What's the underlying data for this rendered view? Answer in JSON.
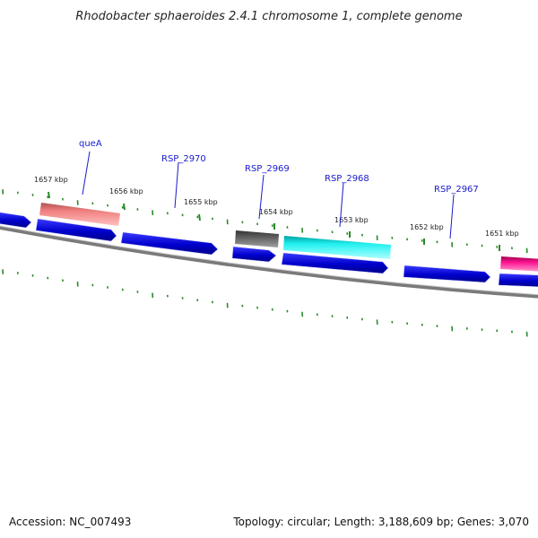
{
  "title": "Rhodobacter sphaeroides 2.4.1 chromosome 1, complete genome",
  "footer": {
    "accession": "Accession: NC_007493",
    "summary": "Topology: circular; Length: 3,188,609 bp; Genes: 3,070"
  },
  "ticks": [
    {
      "label": "1657 kbp"
    },
    {
      "label": "1656 kbp"
    },
    {
      "label": "1655 kbp"
    },
    {
      "label": "1654 kbp"
    },
    {
      "label": "1653 kbp"
    },
    {
      "label": "1652 kbp"
    },
    {
      "label": "1651 kbp"
    }
  ],
  "gene_labels": [
    {
      "name": "queA"
    },
    {
      "name": "RSP_2970"
    },
    {
      "name": "RSP_2969"
    },
    {
      "name": "RSP_2968"
    },
    {
      "name": "RSP_2967"
    }
  ],
  "colors": {
    "backbone": "#7a7a7a",
    "cds": "#1010dd",
    "tick": "#2a8a2a",
    "queA": "#f08080",
    "RSP_2969": "#666666",
    "RSP_2968": "#22e0e0",
    "feature_right": "#ff1493"
  }
}
